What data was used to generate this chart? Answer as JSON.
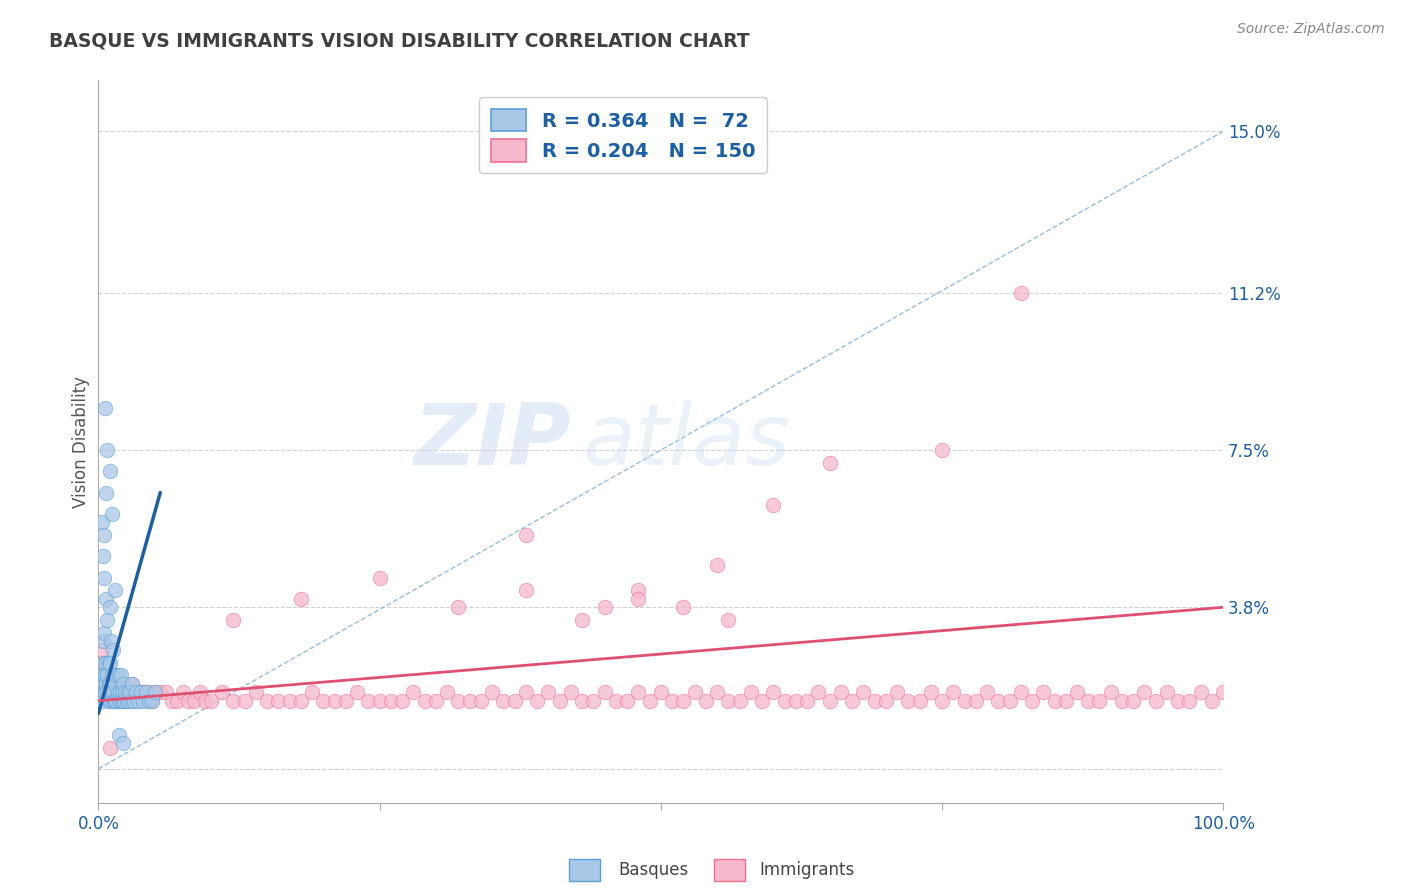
{
  "title": "BASQUE VS IMMIGRANTS VISION DISABILITY CORRELATION CHART",
  "source_text": "Source: ZipAtlas.com",
  "ylabel": "Vision Disability",
  "watermark_zip": "ZIP",
  "watermark_atlas": "atlas",
  "xmin": 0.0,
  "xmax": 1.0,
  "ymin": -0.008,
  "ymax": 0.162,
  "yticks": [
    0.0,
    0.038,
    0.075,
    0.112,
    0.15
  ],
  "ytick_labels": [
    "",
    "3.8%",
    "7.5%",
    "11.2%",
    "15.0%"
  ],
  "xtick_positions": [
    0.0,
    0.25,
    0.5,
    0.75,
    1.0
  ],
  "xtick_labels": [
    "0.0%",
    "",
    "",
    "",
    "100.0%"
  ],
  "bg_color": "#ffffff",
  "plot_bg_color": "#ffffff",
  "grid_color": "#cccccc",
  "basque_color": "#a8c8e8",
  "basque_edge_color": "#5a9fd4",
  "immigrant_color": "#f5b8cc",
  "immigrant_edge_color": "#f07090",
  "basque_R": 0.364,
  "basque_N": 72,
  "immigrant_R": 0.204,
  "immigrant_N": 150,
  "legend_R_color": "#1a5fa8",
  "trend_blue_color": "#1a5fa8",
  "trend_pink_color": "#e05070",
  "ref_line_color": "#7bafd4",
  "title_color": "#404040",
  "axis_label_color": "#1a5fa8",
  "basque_x": [
    0.003,
    0.003,
    0.004,
    0.004,
    0.005,
    0.005,
    0.005,
    0.006,
    0.006,
    0.007,
    0.007,
    0.007,
    0.008,
    0.008,
    0.008,
    0.009,
    0.009,
    0.009,
    0.01,
    0.01,
    0.01,
    0.01,
    0.011,
    0.011,
    0.012,
    0.012,
    0.013,
    0.013,
    0.014,
    0.014,
    0.015,
    0.015,
    0.016,
    0.016,
    0.017,
    0.018,
    0.018,
    0.019,
    0.02,
    0.02,
    0.021,
    0.022,
    0.022,
    0.023,
    0.024,
    0.025,
    0.026,
    0.027,
    0.028,
    0.03,
    0.03,
    0.032,
    0.033,
    0.035,
    0.038,
    0.04,
    0.042,
    0.045,
    0.048,
    0.05,
    0.003,
    0.004,
    0.005,
    0.005,
    0.006,
    0.007,
    0.008,
    0.01,
    0.012,
    0.015,
    0.018,
    0.022
  ],
  "basque_y": [
    0.022,
    0.016,
    0.02,
    0.03,
    0.018,
    0.025,
    0.032,
    0.018,
    0.022,
    0.02,
    0.025,
    0.04,
    0.018,
    0.022,
    0.035,
    0.016,
    0.02,
    0.025,
    0.016,
    0.02,
    0.025,
    0.038,
    0.018,
    0.03,
    0.016,
    0.022,
    0.018,
    0.028,
    0.016,
    0.022,
    0.016,
    0.02,
    0.016,
    0.022,
    0.018,
    0.016,
    0.022,
    0.018,
    0.016,
    0.022,
    0.018,
    0.016,
    0.02,
    0.016,
    0.018,
    0.016,
    0.018,
    0.016,
    0.018,
    0.016,
    0.02,
    0.016,
    0.018,
    0.016,
    0.018,
    0.016,
    0.018,
    0.016,
    0.016,
    0.018,
    0.058,
    0.05,
    0.055,
    0.045,
    0.085,
    0.065,
    0.075,
    0.07,
    0.06,
    0.042,
    0.008,
    0.006
  ],
  "immigrant_x": [
    0.003,
    0.004,
    0.005,
    0.006,
    0.007,
    0.008,
    0.009,
    0.01,
    0.011,
    0.012,
    0.013,
    0.014,
    0.015,
    0.016,
    0.017,
    0.018,
    0.019,
    0.02,
    0.022,
    0.024,
    0.026,
    0.028,
    0.03,
    0.032,
    0.034,
    0.036,
    0.038,
    0.04,
    0.042,
    0.045,
    0.048,
    0.05,
    0.055,
    0.06,
    0.065,
    0.07,
    0.075,
    0.08,
    0.085,
    0.09,
    0.095,
    0.1,
    0.11,
    0.12,
    0.13,
    0.14,
    0.15,
    0.16,
    0.17,
    0.18,
    0.19,
    0.2,
    0.21,
    0.22,
    0.23,
    0.24,
    0.25,
    0.26,
    0.27,
    0.28,
    0.29,
    0.3,
    0.31,
    0.32,
    0.33,
    0.34,
    0.35,
    0.36,
    0.37,
    0.38,
    0.39,
    0.4,
    0.41,
    0.42,
    0.43,
    0.44,
    0.45,
    0.46,
    0.47,
    0.48,
    0.49,
    0.5,
    0.51,
    0.52,
    0.53,
    0.54,
    0.55,
    0.56,
    0.57,
    0.58,
    0.59,
    0.6,
    0.61,
    0.62,
    0.63,
    0.64,
    0.65,
    0.66,
    0.67,
    0.68,
    0.69,
    0.7,
    0.71,
    0.72,
    0.73,
    0.74,
    0.75,
    0.76,
    0.77,
    0.78,
    0.79,
    0.8,
    0.81,
    0.82,
    0.83,
    0.84,
    0.85,
    0.86,
    0.87,
    0.88,
    0.89,
    0.9,
    0.91,
    0.92,
    0.93,
    0.94,
    0.95,
    0.96,
    0.97,
    0.98,
    0.99,
    1.0,
    0.55,
    0.75,
    0.82,
    0.45,
    0.38,
    0.6,
    0.48,
    0.65,
    0.12,
    0.18,
    0.25,
    0.32,
    0.38,
    0.43,
    0.48,
    0.52,
    0.56,
    0.01
  ],
  "immigrant_y": [
    0.028,
    0.025,
    0.022,
    0.02,
    0.022,
    0.018,
    0.02,
    0.018,
    0.02,
    0.018,
    0.02,
    0.018,
    0.018,
    0.018,
    0.02,
    0.018,
    0.018,
    0.018,
    0.018,
    0.018,
    0.018,
    0.018,
    0.02,
    0.018,
    0.018,
    0.018,
    0.018,
    0.018,
    0.018,
    0.018,
    0.016,
    0.018,
    0.018,
    0.018,
    0.016,
    0.016,
    0.018,
    0.016,
    0.016,
    0.018,
    0.016,
    0.016,
    0.018,
    0.016,
    0.016,
    0.018,
    0.016,
    0.016,
    0.016,
    0.016,
    0.018,
    0.016,
    0.016,
    0.016,
    0.018,
    0.016,
    0.016,
    0.016,
    0.016,
    0.018,
    0.016,
    0.016,
    0.018,
    0.016,
    0.016,
    0.016,
    0.018,
    0.016,
    0.016,
    0.018,
    0.016,
    0.018,
    0.016,
    0.018,
    0.016,
    0.016,
    0.018,
    0.016,
    0.016,
    0.018,
    0.016,
    0.018,
    0.016,
    0.016,
    0.018,
    0.016,
    0.018,
    0.016,
    0.016,
    0.018,
    0.016,
    0.018,
    0.016,
    0.016,
    0.016,
    0.018,
    0.016,
    0.018,
    0.016,
    0.018,
    0.016,
    0.016,
    0.018,
    0.016,
    0.016,
    0.018,
    0.016,
    0.018,
    0.016,
    0.016,
    0.018,
    0.016,
    0.016,
    0.018,
    0.016,
    0.018,
    0.016,
    0.016,
    0.018,
    0.016,
    0.016,
    0.018,
    0.016,
    0.016,
    0.018,
    0.016,
    0.018,
    0.016,
    0.016,
    0.018,
    0.016,
    0.018,
    0.048,
    0.075,
    0.112,
    0.038,
    0.055,
    0.062,
    0.042,
    0.072,
    0.035,
    0.04,
    0.045,
    0.038,
    0.042,
    0.035,
    0.04,
    0.038,
    0.035,
    0.005
  ],
  "basque_trend_x": [
    0.0,
    0.055
  ],
  "basque_trend_y": [
    0.013,
    0.065
  ],
  "immigrant_trend_x": [
    0.0,
    1.0
  ],
  "immigrant_trend_y": [
    0.016,
    0.038
  ],
  "ref_line_x": [
    0.0,
    1.0
  ],
  "ref_line_y": [
    0.0,
    0.15
  ]
}
